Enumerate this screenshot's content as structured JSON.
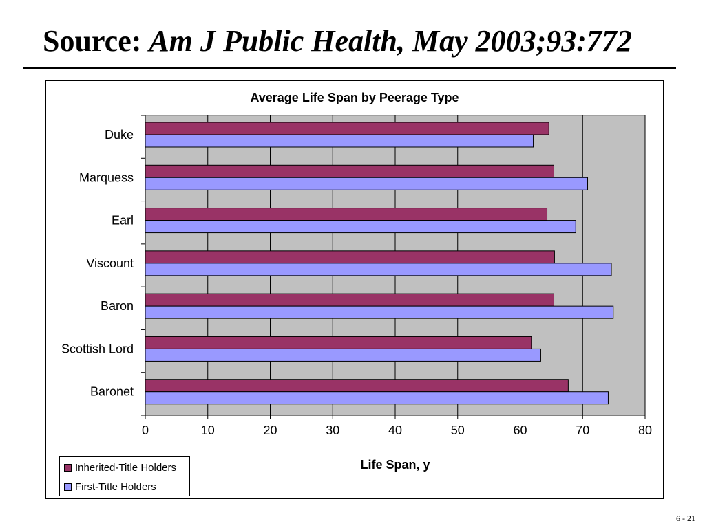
{
  "slide": {
    "title_prefix": "Source:",
    "title_citation": "Am J Public Health, May 2003;93:772",
    "footer": "6 - 21"
  },
  "chart_data": {
    "type": "bar",
    "orientation": "horizontal",
    "title": "Average Life Span by Peerage Type",
    "xlabel": "Life Span, y",
    "ylabel": "",
    "xlim": [
      0,
      80
    ],
    "x_ticks": [
      0,
      10,
      20,
      30,
      40,
      50,
      60,
      70,
      80
    ],
    "categories": [
      "Duke",
      "Marquess",
      "Earl",
      "Viscount",
      "Baron",
      "Scottish Lord",
      "Baronet"
    ],
    "series": [
      {
        "name": "Inherited-Title Holders",
        "color": "#993366",
        "values": [
          64.6,
          65.4,
          64.3,
          65.5,
          65.4,
          61.8,
          67.7
        ]
      },
      {
        "name": "First-Title Holders",
        "color": "#9999ff",
        "values": [
          62.1,
          70.8,
          68.9,
          74.6,
          74.9,
          63.3,
          74.1
        ]
      }
    ],
    "plot_background": "#c0c0c0",
    "grid": true,
    "legend_position": "bottom-left"
  }
}
